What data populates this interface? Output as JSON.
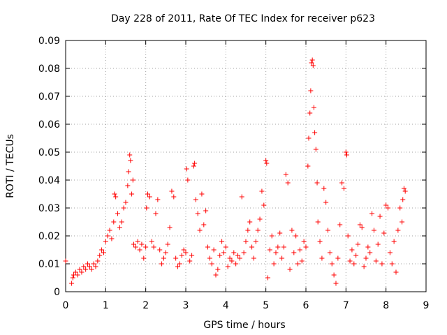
{
  "chart_data": {
    "type": "scatter",
    "title": "Day 228 of 2011, Rate Of TEC Index for receiver p623",
    "xlabel": "GPS time / hours",
    "ylabel": "ROTI / TECUs",
    "xlim": [
      0,
      9
    ],
    "ylim": [
      0,
      0.09
    ],
    "x_ticks": [
      "0",
      "1",
      "2",
      "3",
      "4",
      "5",
      "6",
      "7",
      "8",
      "9"
    ],
    "y_ticks": [
      "0",
      "0.01",
      "0.02",
      "0.03",
      "0.04",
      "0.05",
      "0.06",
      "0.07",
      "0.08",
      "0.09"
    ],
    "grid": true,
    "legend": "none",
    "marker": "plus",
    "series": [
      {
        "color": "#ff0000",
        "points": [
          [
            0.0,
            0.011
          ],
          [
            0.15,
            0.003
          ],
          [
            0.18,
            0.005
          ],
          [
            0.2,
            0.006
          ],
          [
            0.25,
            0.007
          ],
          [
            0.3,
            0.006
          ],
          [
            0.35,
            0.008
          ],
          [
            0.4,
            0.007
          ],
          [
            0.45,
            0.009
          ],
          [
            0.5,
            0.008
          ],
          [
            0.55,
            0.01
          ],
          [
            0.6,
            0.009
          ],
          [
            0.65,
            0.008
          ],
          [
            0.7,
            0.01
          ],
          [
            0.75,
            0.009
          ],
          [
            0.8,
            0.011
          ],
          [
            0.85,
            0.013
          ],
          [
            0.9,
            0.015
          ],
          [
            0.95,
            0.014
          ],
          [
            1.0,
            0.018
          ],
          [
            1.05,
            0.02
          ],
          [
            1.1,
            0.022
          ],
          [
            1.15,
            0.019
          ],
          [
            1.2,
            0.025
          ],
          [
            1.22,
            0.035
          ],
          [
            1.25,
            0.034
          ],
          [
            1.3,
            0.028
          ],
          [
            1.35,
            0.023
          ],
          [
            1.4,
            0.025
          ],
          [
            1.45,
            0.03
          ],
          [
            1.5,
            0.032
          ],
          [
            1.55,
            0.038
          ],
          [
            1.57,
            0.043
          ],
          [
            1.6,
            0.049
          ],
          [
            1.62,
            0.047
          ],
          [
            1.65,
            0.035
          ],
          [
            1.68,
            0.04
          ],
          [
            1.7,
            0.017
          ],
          [
            1.75,
            0.016
          ],
          [
            1.8,
            0.018
          ],
          [
            1.85,
            0.015
          ],
          [
            1.9,
            0.017
          ],
          [
            1.95,
            0.012
          ],
          [
            2.0,
            0.016
          ],
          [
            2.02,
            0.03
          ],
          [
            2.05,
            0.035
          ],
          [
            2.1,
            0.034
          ],
          [
            2.15,
            0.018
          ],
          [
            2.2,
            0.016
          ],
          [
            2.25,
            0.028
          ],
          [
            2.3,
            0.033
          ],
          [
            2.35,
            0.015
          ],
          [
            2.4,
            0.01
          ],
          [
            2.45,
            0.012
          ],
          [
            2.5,
            0.014
          ],
          [
            2.55,
            0.017
          ],
          [
            2.6,
            0.023
          ],
          [
            2.65,
            0.036
          ],
          [
            2.7,
            0.034
          ],
          [
            2.75,
            0.012
          ],
          [
            2.8,
            0.009
          ],
          [
            2.85,
            0.01
          ],
          [
            2.9,
            0.013
          ],
          [
            2.95,
            0.015
          ],
          [
            3.0,
            0.014
          ],
          [
            3.02,
            0.044
          ],
          [
            3.05,
            0.04
          ],
          [
            3.1,
            0.011
          ],
          [
            3.15,
            0.013
          ],
          [
            3.2,
            0.045
          ],
          [
            3.22,
            0.046
          ],
          [
            3.25,
            0.033
          ],
          [
            3.3,
            0.028
          ],
          [
            3.35,
            0.022
          ],
          [
            3.4,
            0.035
          ],
          [
            3.45,
            0.024
          ],
          [
            3.5,
            0.029
          ],
          [
            3.55,
            0.016
          ],
          [
            3.6,
            0.012
          ],
          [
            3.65,
            0.01
          ],
          [
            3.7,
            0.015
          ],
          [
            3.75,
            0.006
          ],
          [
            3.8,
            0.008
          ],
          [
            3.85,
            0.013
          ],
          [
            3.9,
            0.018
          ],
          [
            3.95,
            0.014
          ],
          [
            4.0,
            0.016
          ],
          [
            4.05,
            0.009
          ],
          [
            4.1,
            0.012
          ],
          [
            4.15,
            0.011
          ],
          [
            4.2,
            0.014
          ],
          [
            4.25,
            0.01
          ],
          [
            4.3,
            0.013
          ],
          [
            4.35,
            0.012
          ],
          [
            4.4,
            0.034
          ],
          [
            4.45,
            0.014
          ],
          [
            4.5,
            0.018
          ],
          [
            4.55,
            0.022
          ],
          [
            4.6,
            0.025
          ],
          [
            4.65,
            0.016
          ],
          [
            4.7,
            0.012
          ],
          [
            4.75,
            0.018
          ],
          [
            4.8,
            0.022
          ],
          [
            4.85,
            0.026
          ],
          [
            4.9,
            0.036
          ],
          [
            4.95,
            0.031
          ],
          [
            5.0,
            0.047
          ],
          [
            5.02,
            0.046
          ],
          [
            5.05,
            0.005
          ],
          [
            5.1,
            0.015
          ],
          [
            5.15,
            0.02
          ],
          [
            5.2,
            0.01
          ],
          [
            5.25,
            0.014
          ],
          [
            5.3,
            0.016
          ],
          [
            5.35,
            0.021
          ],
          [
            5.4,
            0.012
          ],
          [
            5.45,
            0.016
          ],
          [
            5.5,
            0.042
          ],
          [
            5.55,
            0.039
          ],
          [
            5.6,
            0.008
          ],
          [
            5.65,
            0.022
          ],
          [
            5.7,
            0.014
          ],
          [
            5.75,
            0.02
          ],
          [
            5.8,
            0.01
          ],
          [
            5.85,
            0.015
          ],
          [
            5.9,
            0.011
          ],
          [
            5.95,
            0.018
          ],
          [
            6.0,
            0.016
          ],
          [
            6.05,
            0.045
          ],
          [
            6.07,
            0.055
          ],
          [
            6.1,
            0.064
          ],
          [
            6.12,
            0.072
          ],
          [
            6.14,
            0.082
          ],
          [
            6.16,
            0.083
          ],
          [
            6.18,
            0.081
          ],
          [
            6.2,
            0.066
          ],
          [
            6.22,
            0.057
          ],
          [
            6.25,
            0.051
          ],
          [
            6.28,
            0.039
          ],
          [
            6.3,
            0.025
          ],
          [
            6.35,
            0.018
          ],
          [
            6.4,
            0.012
          ],
          [
            6.45,
            0.037
          ],
          [
            6.5,
            0.032
          ],
          [
            6.55,
            0.022
          ],
          [
            6.6,
            0.014
          ],
          [
            6.65,
            0.01
          ],
          [
            6.7,
            0.006
          ],
          [
            6.75,
            0.003
          ],
          [
            6.8,
            0.012
          ],
          [
            6.85,
            0.024
          ],
          [
            6.9,
            0.039
          ],
          [
            6.95,
            0.037
          ],
          [
            7.0,
            0.05
          ],
          [
            7.02,
            0.049
          ],
          [
            7.05,
            0.02
          ],
          [
            7.1,
            0.011
          ],
          [
            7.15,
            0.015
          ],
          [
            7.2,
            0.01
          ],
          [
            7.25,
            0.013
          ],
          [
            7.3,
            0.017
          ],
          [
            7.35,
            0.024
          ],
          [
            7.4,
            0.023
          ],
          [
            7.45,
            0.009
          ],
          [
            7.5,
            0.012
          ],
          [
            7.55,
            0.016
          ],
          [
            7.6,
            0.014
          ],
          [
            7.65,
            0.028
          ],
          [
            7.7,
            0.022
          ],
          [
            7.75,
            0.011
          ],
          [
            7.8,
            0.017
          ],
          [
            7.85,
            0.027
          ],
          [
            7.9,
            0.01
          ],
          [
            7.95,
            0.021
          ],
          [
            8.0,
            0.031
          ],
          [
            8.05,
            0.03
          ],
          [
            8.1,
            0.014
          ],
          [
            8.15,
            0.01
          ],
          [
            8.2,
            0.018
          ],
          [
            8.25,
            0.007
          ],
          [
            8.3,
            0.022
          ],
          [
            8.35,
            0.03
          ],
          [
            8.4,
            0.025
          ],
          [
            8.42,
            0.033
          ],
          [
            8.45,
            0.037
          ],
          [
            8.48,
            0.036
          ]
        ]
      }
    ]
  }
}
